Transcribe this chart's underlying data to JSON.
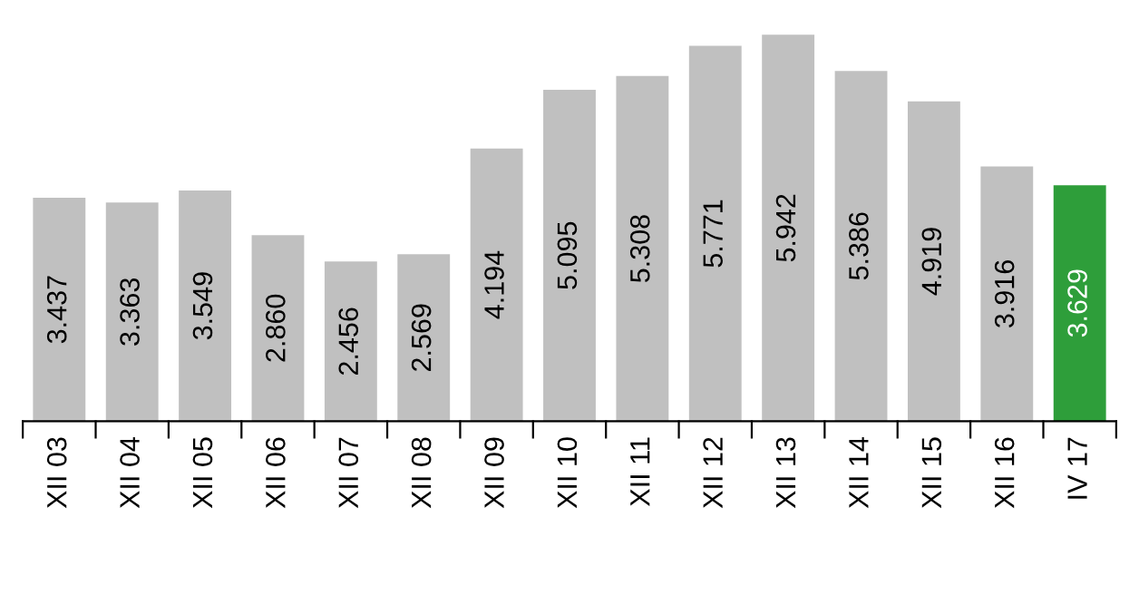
{
  "chart_data": {
    "type": "bar",
    "categories": [
      "XII 03",
      "XII 04",
      "XII 05",
      "XII 06",
      "XII 07",
      "XII 08",
      "XII 09",
      "XII 10",
      "XII 11",
      "XII 12",
      "XII 13",
      "XII 14",
      "XII 15",
      "XII 16",
      "IV 17"
    ],
    "values": [
      3.437,
      3.363,
      3.549,
      2.86,
      2.456,
      2.569,
      4.194,
      5.095,
      5.308,
      5.771,
      5.942,
      5.386,
      4.919,
      3.916,
      3.629
    ],
    "value_labels": [
      "3.437",
      "3.363",
      "3.549",
      "2.860",
      "2.456",
      "2.569",
      "4.194",
      "5.095",
      "5.308",
      "5.771",
      "5.942",
      "5.386",
      "4.919",
      "3.916",
      "3.629"
    ],
    "colors": [
      "#c0c0c0",
      "#c0c0c0",
      "#c0c0c0",
      "#c0c0c0",
      "#c0c0c0",
      "#c0c0c0",
      "#c0c0c0",
      "#c0c0c0",
      "#c0c0c0",
      "#c0c0c0",
      "#c0c0c0",
      "#c0c0c0",
      "#c0c0c0",
      "#c0c0c0",
      "#2e9e3a"
    ],
    "grid": false,
    "legend": false
  }
}
